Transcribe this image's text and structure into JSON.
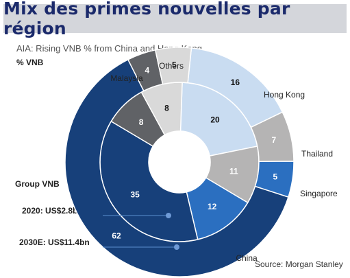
{
  "title": "Mix des primes nouvelles par région",
  "chart_data": {
    "type": "pie",
    "subtitle": "AIA: Rising VNB % from China and Hong Kong",
    "unit_label": "% VNB",
    "group_label": "Group VNB",
    "ring_labels": [
      "2020: US$2.8bn",
      "2030E: US$11.4bn"
    ],
    "categories": [
      "Hong Kong",
      "Thailand",
      "Singapore",
      "China",
      "Malaysia",
      "Others"
    ],
    "series": [
      {
        "ring": "inner",
        "values": [
          20,
          11,
          12,
          35,
          8,
          8
        ]
      },
      {
        "ring": "outer",
        "values": [
          16,
          7,
          5,
          62,
          4,
          5
        ]
      }
    ],
    "source": "Source: Morgan Stanley",
    "colors": {
      "Hong Kong": "#c9dcf1",
      "Thailand": "#b5b4b4",
      "Singapore": "#2b6fc0",
      "China": "#17407a",
      "Malaysia": "#606266",
      "Others": "#d9d9d9",
      "title_text": "#1b2a6b",
      "title_band": "#d4d6db"
    }
  }
}
